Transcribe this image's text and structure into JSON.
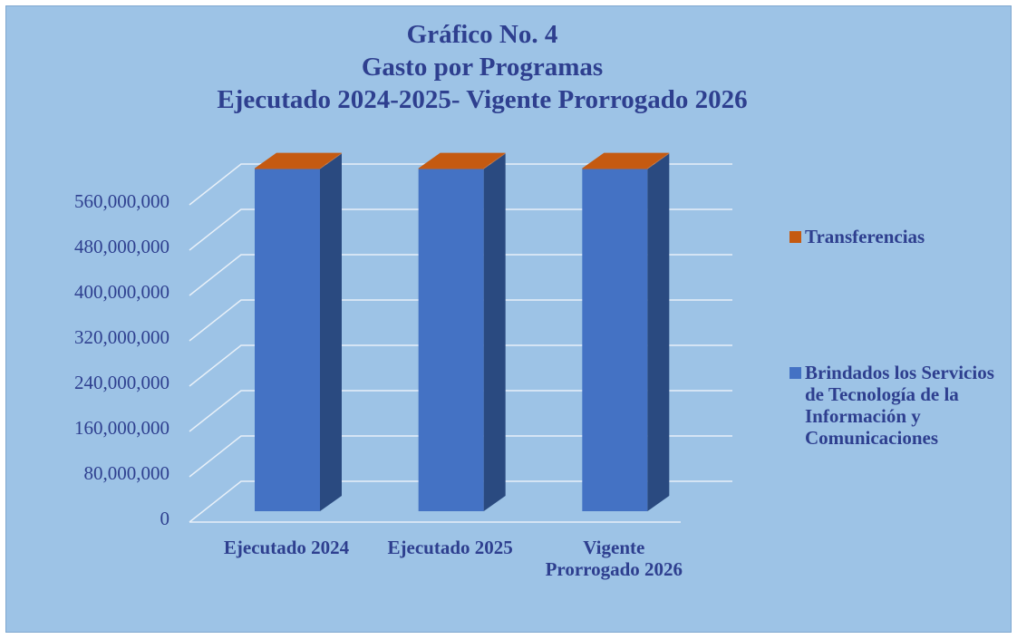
{
  "chart_data": {
    "type": "bar3d_stacked",
    "title": [
      "Gráfico No. 4",
      "Gasto por Programas",
      "Ejecutado 2024-2025- Vigente Prorrogado 2026"
    ],
    "categories": [
      "Ejecutado 2024",
      "Ejecutado 2025",
      "Vigente Prorrogado 2026"
    ],
    "series": [
      {
        "name": "Brindados los Servicios de Tecnología de la Información y Comunicaciones",
        "color": "#4472c4",
        "side_color": "#2a4a80",
        "values": [
          604000000,
          604000000,
          604000000
        ]
      },
      {
        "name": "Transferencias",
        "color": "#c55a11",
        "values": [
          1500000,
          1500000,
          1500000
        ]
      }
    ],
    "ylim": [
      0,
      640000000
    ],
    "yticks": [
      0,
      {
        "value": 80000000,
        "label": "80,000,000"
      },
      {
        "value": 160000000,
        "label": "160,000,000"
      },
      {
        "value": 240000000,
        "label": "240,000,000"
      },
      {
        "value": 320000000,
        "label": "320,000,000"
      },
      {
        "value": 400000000,
        "label": "400,000,000"
      },
      {
        "value": 480000000,
        "label": "480,000,000"
      },
      {
        "value": 560000000,
        "label": "560,000,000"
      }
    ],
    "grid": true,
    "legend": "right"
  }
}
